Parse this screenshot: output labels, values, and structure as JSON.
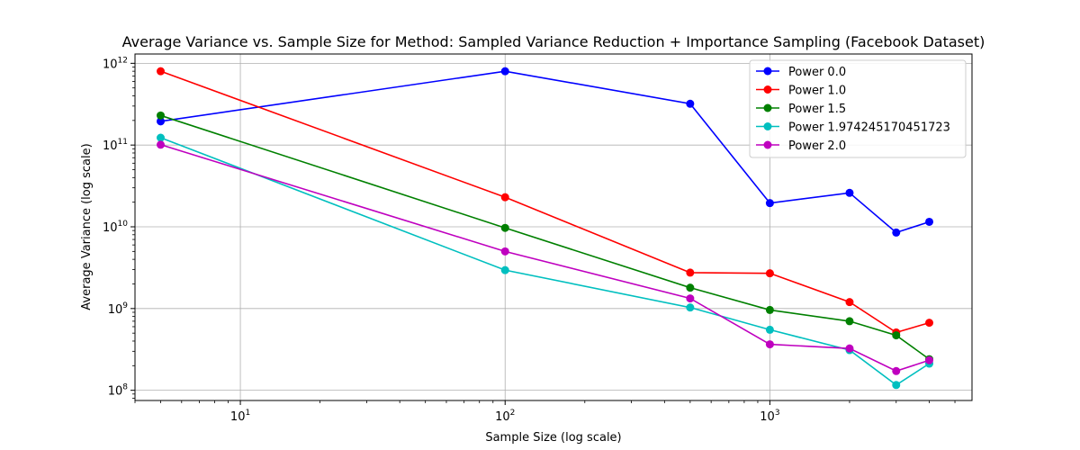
{
  "chart_data": {
    "type": "line",
    "title": "Average Variance vs. Sample Size for Method: Sampled Variance Reduction + Importance Sampling (Facebook Dataset)",
    "xlabel": "Sample Size (log scale)",
    "ylabel": "Average Variance (log scale)",
    "xscale": "log",
    "yscale": "log",
    "xlim": [
      4,
      5800
    ],
    "ylim": [
      75000000,
      1300000000000
    ],
    "grid": true,
    "legend_position": "top-right",
    "x_ticks": [
      {
        "value": 10,
        "base": "10",
        "exp": "1"
      },
      {
        "value": 100,
        "base": "10",
        "exp": "2"
      },
      {
        "value": 1000,
        "base": "10",
        "exp": "3"
      }
    ],
    "y_ticks": [
      {
        "value": 100000000,
        "base": "10",
        "exp": "8"
      },
      {
        "value": 1000000000,
        "base": "10",
        "exp": "9"
      },
      {
        "value": 10000000000,
        "base": "10",
        "exp": "10"
      },
      {
        "value": 100000000000,
        "base": "10",
        "exp": "11"
      },
      {
        "value": 1000000000000,
        "base": "10",
        "exp": "12"
      }
    ],
    "x": [
      5,
      100,
      500,
      1000,
      2000,
      3000,
      4000
    ],
    "series": [
      {
        "name": "Power 0.0",
        "color": "#0000ff",
        "values": [
          195000000000,
          800000000000,
          320000000000,
          19500000000,
          26000000000,
          8500000000,
          11500000000
        ]
      },
      {
        "name": "Power 1.0",
        "color": "#ff0000",
        "values": [
          800000000000,
          23000000000,
          2750000000,
          2700000000,
          1200000000,
          510000000,
          670000000
        ]
      },
      {
        "name": "Power 1.5",
        "color": "#008000",
        "values": [
          230000000000,
          9700000000,
          1800000000,
          960000000,
          700000000,
          470000000,
          240000000
        ]
      },
      {
        "name": "Power 1.974245170451723",
        "color": "#00bfbf",
        "values": [
          123000000000,
          2950000000,
          1030000000,
          550000000,
          310000000,
          116000000,
          212000000
        ]
      },
      {
        "name": "Power 2.0",
        "color": "#bf00bf",
        "values": [
          101000000000,
          5000000000,
          1330000000,
          365000000,
          325000000,
          172000000,
          233000000
        ]
      }
    ]
  }
}
